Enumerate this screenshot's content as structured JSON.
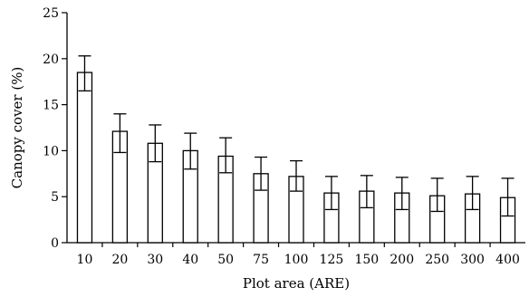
{
  "chart_data": {
    "type": "bar",
    "xlabel": "Plot area (ARE)",
    "ylabel": "Canopy cover (%)",
    "ylim": [
      0,
      25
    ],
    "yticks": [
      0,
      5,
      10,
      15,
      20,
      25
    ],
    "categories": [
      "10",
      "20",
      "30",
      "40",
      "50",
      "75",
      "100",
      "125",
      "150",
      "200",
      "250",
      "300",
      "400"
    ],
    "values": [
      18.5,
      12.1,
      10.8,
      10.0,
      9.4,
      7.5,
      7.2,
      5.4,
      5.6,
      5.4,
      5.1,
      5.3,
      4.9
    ],
    "error_upper": [
      20.3,
      14.0,
      12.8,
      11.9,
      11.4,
      9.3,
      8.9,
      7.2,
      7.3,
      7.1,
      7.0,
      7.2,
      7.0
    ],
    "error_lower": [
      16.5,
      9.8,
      8.8,
      8.0,
      7.6,
      5.7,
      5.6,
      3.6,
      3.8,
      3.6,
      3.4,
      3.6,
      2.9
    ],
    "grid": false,
    "legend": "none",
    "colors": {
      "bar_fill": "#ffffff",
      "bar_stroke": "#000000"
    }
  }
}
